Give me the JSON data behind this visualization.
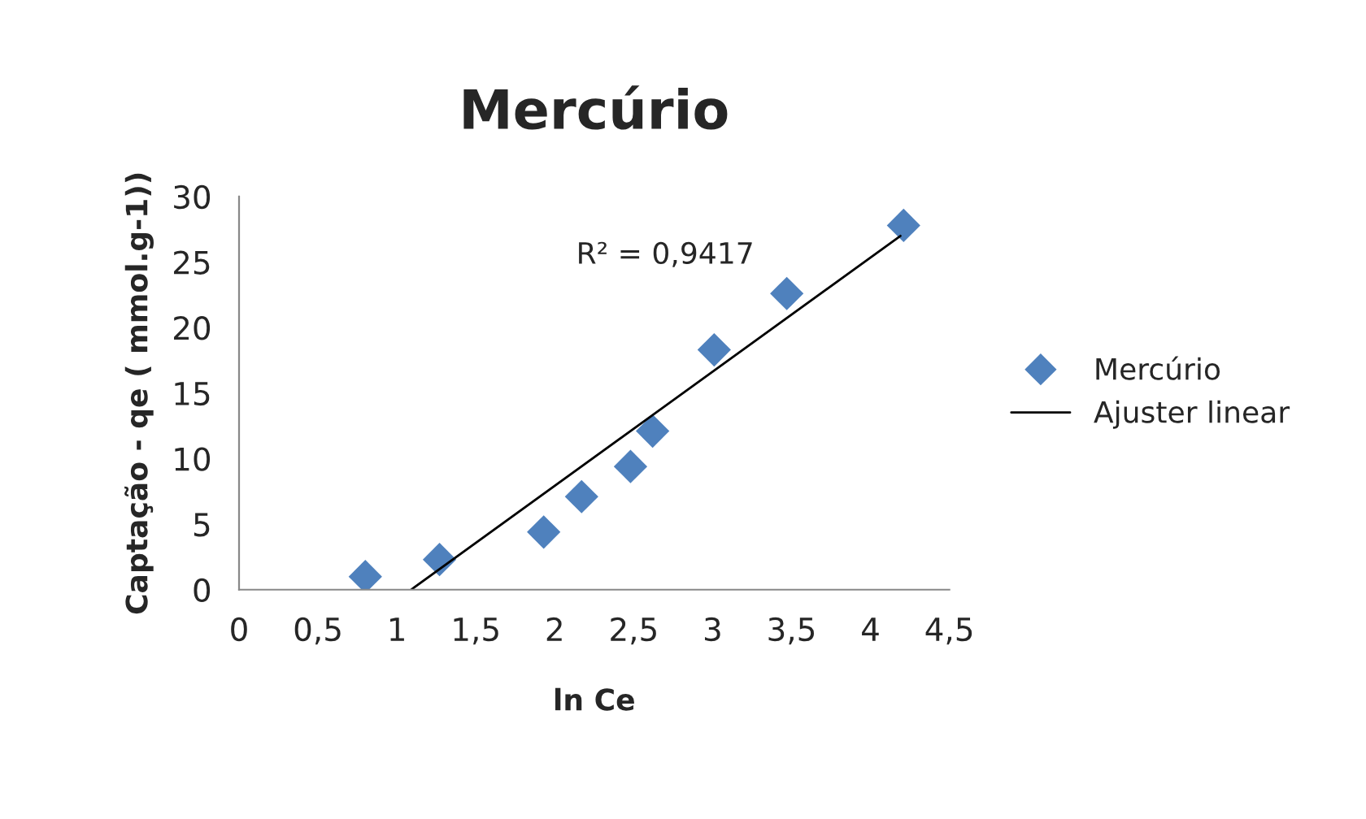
{
  "chart_data": {
    "type": "scatter",
    "title": "Mercúrio",
    "xlabel": "ln Ce",
    "ylabel": "Captação - qe ( mmol.g-1))",
    "xlim": [
      0,
      4.5
    ],
    "ylim": [
      0,
      30
    ],
    "xticks": [
      0,
      {
        "value": 0.5,
        "label": "0,5"
      },
      1,
      {
        "value": 1.5,
        "label": "1,5"
      },
      2,
      {
        "value": 2.5,
        "label": "2,5"
      },
      3,
      {
        "value": 3.5,
        "label": "3,5"
      },
      4,
      {
        "value": 4.5,
        "label": "4,5"
      }
    ],
    "yticks": [
      0,
      5,
      10,
      15,
      20,
      25,
      30
    ],
    "series": [
      {
        "name": "Mercúrio",
        "color": "#4f81bd",
        "marker": "diamond",
        "x": [
          0.8,
          1.27,
          1.93,
          2.17,
          2.48,
          2.62,
          3.01,
          3.47,
          4.21
        ],
        "values": [
          1.0,
          2.3,
          4.4,
          7.1,
          9.4,
          12.1,
          18.3,
          22.6,
          27.8
        ]
      },
      {
        "name": "Ajuster linear",
        "type": "line",
        "color": "#000000",
        "marker": "none",
        "line_style": "solid",
        "x": [
          1.09,
          4.19
        ],
        "values": [
          0,
          27.0
        ]
      }
    ],
    "annotations": [
      "R² = 0,9417"
    ],
    "legend": "right",
    "grid": false
  }
}
